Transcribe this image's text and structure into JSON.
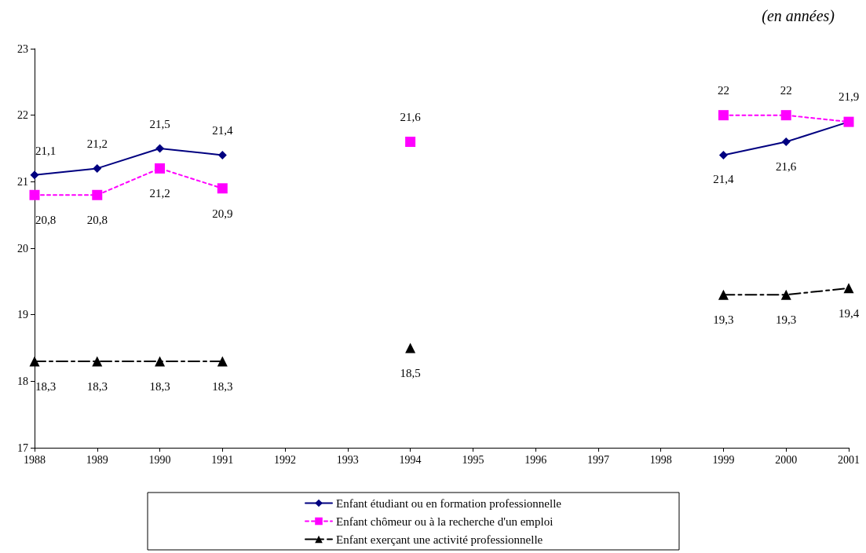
{
  "chart_data": {
    "type": "line",
    "categories": [
      "1988",
      "1989",
      "1990",
      "1991",
      "1992",
      "1993",
      "1994",
      "1995",
      "1996",
      "1997",
      "1998",
      "1999",
      "2000",
      "2001"
    ],
    "series": [
      {
        "name": "Enfant étudiant ou en formation professionnelle",
        "color": "#000080",
        "marker": "diamond",
        "line_style": "solid",
        "values": [
          21.1,
          21.2,
          21.5,
          21.4,
          null,
          null,
          null,
          null,
          null,
          null,
          null,
          21.4,
          21.6,
          21.9
        ],
        "value_labels": [
          "21,1",
          "21,2",
          "21,5",
          "21,4",
          null,
          null,
          null,
          null,
          null,
          null,
          null,
          "21,4",
          "21,6",
          null
        ]
      },
      {
        "name": "Enfant chômeur ou à la recherche d'un emploi",
        "color": "#ff00ff",
        "marker": "square",
        "line_style": "dotted",
        "values": [
          20.8,
          20.8,
          21.2,
          20.9,
          null,
          null,
          21.6,
          null,
          null,
          null,
          null,
          22,
          22,
          21.9
        ],
        "value_labels": [
          "20,8",
          "20,8",
          "21,2",
          "20,9",
          null,
          null,
          "21,6",
          null,
          null,
          null,
          null,
          "22",
          "22",
          "21,9"
        ]
      },
      {
        "name": "Enfant exerçant une activité professionnelle",
        "color": "#000000",
        "marker": "triangle",
        "line_style": "dashed",
        "values": [
          18.3,
          18.3,
          18.3,
          18.3,
          null,
          null,
          18.5,
          null,
          null,
          null,
          null,
          19.3,
          19.3,
          19.4
        ],
        "value_labels": [
          "18,3",
          "18,3",
          "18,3",
          "18,3",
          null,
          null,
          "18,5",
          null,
          null,
          null,
          null,
          "19,3",
          "19,3",
          "19,4"
        ]
      }
    ],
    "ylim": [
      17,
      23
    ],
    "yticks": [
      17,
      18,
      19,
      20,
      21,
      22,
      23
    ],
    "grid": false,
    "legend": "bottom",
    "annotations": [
      "(en années)"
    ]
  }
}
